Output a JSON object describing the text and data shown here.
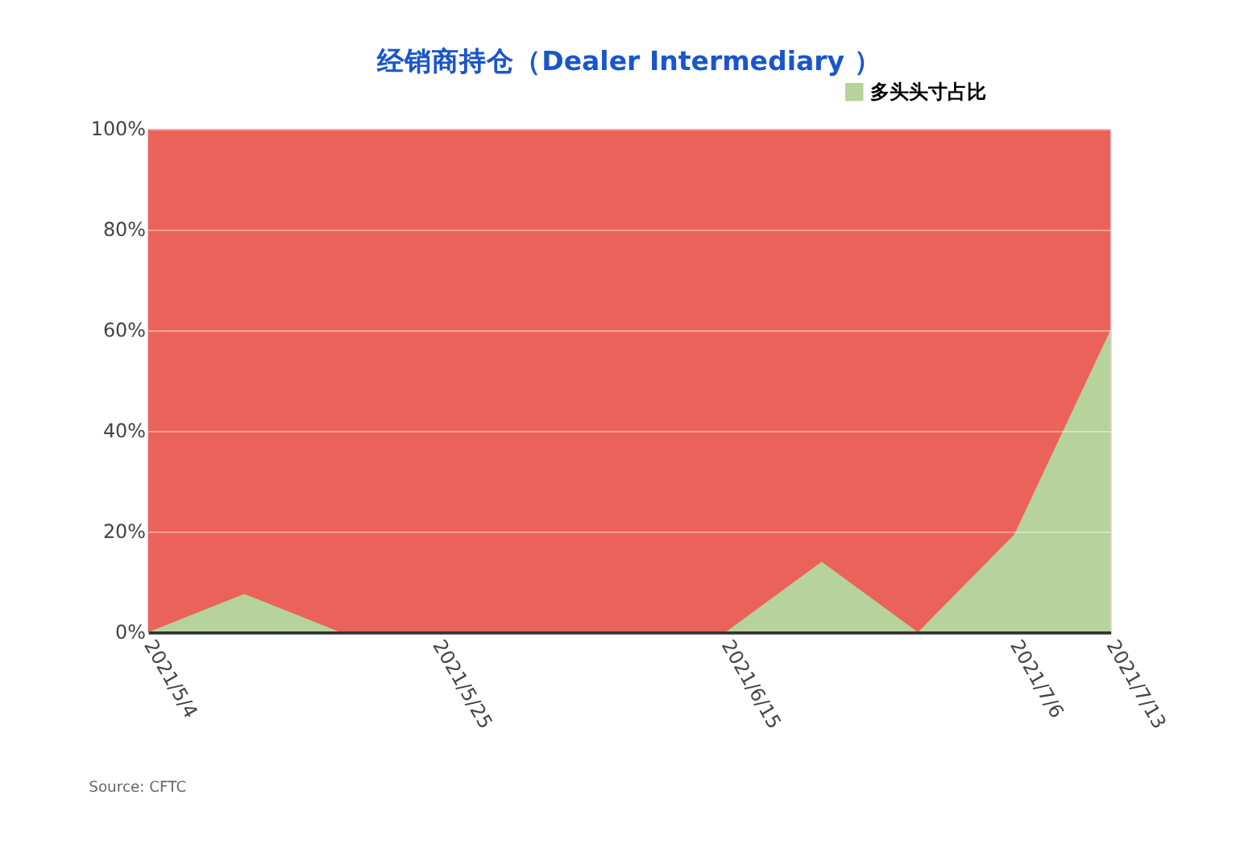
{
  "chart_data": {
    "type": "area",
    "title": "经销商持仓（Dealer Intermediary ）",
    "x": [
      "2021-05-04",
      "2021-05-11",
      "2021-05-18",
      "2021-05-25",
      "2021-06-01",
      "2021-06-08",
      "2021-06-15",
      "2021-06-22",
      "2021-06-29",
      "2021-07-06",
      "2021-07-13"
    ],
    "series": [
      {
        "name": "多头头寸占比",
        "color": "#b5d39a",
        "values": [
          0,
          7.6,
          0,
          0,
          0,
          0,
          0,
          14,
          0,
          19.4,
          60
        ]
      }
    ],
    "bands": [
      {
        "axis": "y",
        "from": 0,
        "to": 100,
        "color": "#eb625b"
      }
    ],
    "xlim": [
      "2021-05-04",
      "2021-07-13"
    ],
    "xticks": [
      {
        "value": "2021-05-04",
        "label": "2021/5/4"
      },
      {
        "value": "2021-05-25",
        "label": "2021/5/25"
      },
      {
        "value": "2021-06-15",
        "label": "2021/6/15"
      },
      {
        "value": "2021-07-06",
        "label": "2021/7/6"
      },
      {
        "value": "2021-07-13",
        "label": "2021/7/13"
      }
    ],
    "ylim": [
      0,
      100
    ],
    "yticks": [
      {
        "value": 0,
        "label": "0%"
      },
      {
        "value": 20,
        "label": "20%"
      },
      {
        "value": 40,
        "label": "40%"
      },
      {
        "value": 60,
        "label": "60%"
      },
      {
        "value": 80,
        "label": "80%"
      },
      {
        "value": 100,
        "label": "100%"
      }
    ],
    "grid": "y",
    "legend": "top right",
    "annotations": [
      "Source: CFTC"
    ]
  }
}
